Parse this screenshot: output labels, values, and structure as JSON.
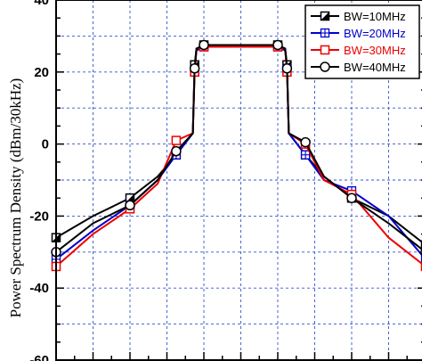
{
  "chart_data": {
    "type": "line",
    "title": "",
    "xlabel": "",
    "ylabel": "Power Spectrum Density (dBm/30kHz)",
    "ylim": [
      -60,
      40
    ],
    "y_ticks": [
      40,
      20,
      0,
      -20,
      -40,
      -60
    ],
    "x_domain": [
      -1,
      1
    ],
    "x_unlabeled": true,
    "grid": "dashed",
    "legend_placement": "top-right",
    "series": [
      {
        "name": "BW=10MHz",
        "color": "#000000",
        "marker": "half-filled-square",
        "x": [
          -1.0,
          -0.8,
          -0.6,
          -0.45,
          -0.35,
          -0.26,
          -0.25,
          -0.24,
          -0.2,
          0.0,
          0.2,
          0.24,
          0.25,
          0.26,
          0.35,
          0.45,
          0.6,
          0.8,
          1.0
        ],
        "y": [
          -26,
          -20,
          -15,
          -9,
          -3,
          3,
          22,
          26.5,
          27.5,
          27.5,
          27.5,
          26.5,
          22,
          3,
          -3,
          -9,
          -15,
          -20,
          -28
        ]
      },
      {
        "name": "BW=20MHz",
        "color": "#0000cc",
        "marker": "square-plus",
        "x": [
          -1.0,
          -0.8,
          -0.6,
          -0.45,
          -0.35,
          -0.26,
          -0.25,
          -0.24,
          -0.2,
          0.0,
          0.2,
          0.24,
          0.25,
          0.26,
          0.35,
          0.45,
          0.6,
          0.8,
          1.0
        ],
        "y": [
          -32,
          -24,
          -17,
          -10,
          -3,
          3,
          20,
          26,
          27,
          27,
          27,
          26,
          21,
          3,
          -3,
          -10,
          -13,
          -20,
          -32
        ]
      },
      {
        "name": "BW=30MHz",
        "color": "#ee0000",
        "marker": "open-square",
        "x": [
          -1.0,
          -0.8,
          -0.6,
          -0.45,
          -0.35,
          -0.26,
          -0.25,
          -0.24,
          -0.2,
          0.0,
          0.2,
          0.24,
          0.25,
          0.26,
          0.35,
          0.45,
          0.6,
          0.8,
          1.0
        ],
        "y": [
          -34,
          -25,
          -18,
          -11,
          1,
          3,
          20,
          26.5,
          27,
          27,
          27,
          26.5,
          20,
          3,
          0,
          -10,
          -14,
          -26,
          -34
        ]
      },
      {
        "name": "BW=40MHz",
        "color": "#000000",
        "marker": "open-circle",
        "x": [
          -1.0,
          -0.8,
          -0.6,
          -0.45,
          -0.35,
          -0.26,
          -0.25,
          -0.24,
          -0.2,
          0.0,
          0.2,
          0.24,
          0.25,
          0.26,
          0.35,
          0.45,
          0.6,
          0.8,
          1.0
        ],
        "y": [
          -30,
          -22,
          -17,
          -10,
          -2,
          3,
          21,
          26.5,
          27.5,
          27.5,
          27.5,
          26.5,
          21,
          3,
          0.5,
          -9,
          -15,
          -22,
          -30
        ]
      }
    ]
  }
}
